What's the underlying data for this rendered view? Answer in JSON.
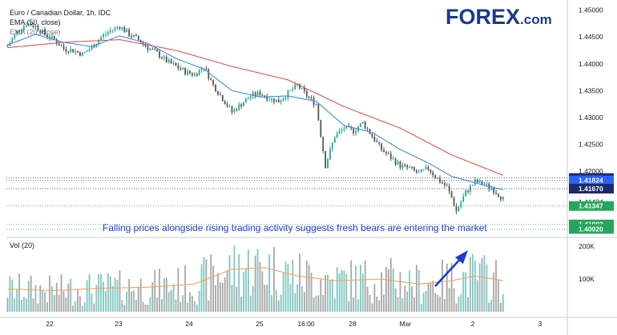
{
  "legend": {
    "line1": "Euro / Canadian Dollar, 1h, IDC",
    "line2": "EMA (50, close)",
    "line3": "EMA (20, close)"
  },
  "logo": {
    "brand": "FOREX",
    "suffix": ".com"
  },
  "annotation": "Falling prices alongside rising trading activity suggests fresh bears are entering the market",
  "volume_label": "Vol (20)",
  "colors": {
    "up": "#26a69a",
    "down": "#555555",
    "ema50": "#e0554f",
    "ema20": "#3f8ee6",
    "vol_up": "#7ec8c0",
    "vol_down": "#a7a7a7",
    "vol_ma": "#f4a460",
    "arrow": "#1a3ccf",
    "price_tag_dark": "#1c2a6b",
    "price_tag_blue": "#2962ff",
    "price_tag_green": "#26a65b"
  },
  "chart_data": {
    "type": "candlestick",
    "title": "Euro / Canadian Dollar, 1h, IDC",
    "x_ticks": [
      "22",
      "23",
      "24",
      "25",
      "16:00",
      "28",
      "Mar",
      "2",
      "3"
    ],
    "y_ticks": [
      "1.45000",
      "1.44500",
      "1.44000",
      "1.43500",
      "1.43000",
      "1.42500",
      "1.42000",
      "1.41424"
    ],
    "ylim": [
      1.4082,
      1.451
    ],
    "price_markers": [
      {
        "value": 1.41869,
        "label": "1.41869",
        "style": "dark"
      },
      {
        "value": 1.41824,
        "label": "1.41824",
        "style": "blue"
      },
      {
        "value": 1.4167,
        "label": "1.41670",
        "style": "dark"
      },
      {
        "value": 1.41347,
        "label": "1.41347",
        "style": "green"
      },
      {
        "value": 1.41003,
        "label": "1.41003",
        "style": "green"
      },
      {
        "value": 1.4092,
        "label": "1.40920",
        "style": "green"
      }
    ],
    "close_path": [
      [
        0,
        1.4433
      ],
      [
        4,
        1.446
      ],
      [
        8,
        1.4475
      ],
      [
        12,
        1.447
      ],
      [
        16,
        1.4455
      ],
      [
        20,
        1.4445
      ],
      [
        24,
        1.4428
      ],
      [
        28,
        1.4425
      ],
      [
        32,
        1.4418
      ],
      [
        36,
        1.443
      ],
      [
        40,
        1.445
      ],
      [
        44,
        1.4462
      ],
      [
        48,
        1.447
      ],
      [
        52,
        1.4455
      ],
      [
        56,
        1.4445
      ],
      [
        60,
        1.443
      ],
      [
        64,
        1.442
      ],
      [
        68,
        1.4405
      ],
      [
        72,
        1.4395
      ],
      [
        76,
        1.4385
      ],
      [
        80,
        1.438
      ],
      [
        84,
        1.4395
      ],
      [
        88,
        1.436
      ],
      [
        92,
        1.4335
      ],
      [
        96,
        1.431
      ],
      [
        100,
        1.4325
      ],
      [
        104,
        1.434
      ],
      [
        108,
        1.4345
      ],
      [
        112,
        1.4335
      ],
      [
        116,
        1.433
      ],
      [
        120,
        1.4345
      ],
      [
        124,
        1.436
      ],
      [
        128,
        1.434
      ],
      [
        132,
        1.4325
      ],
      [
        136,
        1.421
      ],
      [
        140,
        1.4265
      ],
      [
        144,
        1.428
      ],
      [
        148,
        1.4275
      ],
      [
        152,
        1.429
      ],
      [
        156,
        1.4265
      ],
      [
        160,
        1.424
      ],
      [
        164,
        1.4225
      ],
      [
        168,
        1.421
      ],
      [
        172,
        1.4205
      ],
      [
        176,
        1.4195
      ],
      [
        180,
        1.4205
      ],
      [
        184,
        1.4185
      ],
      [
        188,
        1.417
      ],
      [
        190,
        1.415
      ],
      [
        192,
        1.4125
      ],
      [
        196,
        1.416
      ],
      [
        200,
        1.418
      ],
      [
        204,
        1.4175
      ],
      [
        208,
        1.4165
      ],
      [
        212,
        1.4148
      ]
    ],
    "ema20": [
      [
        0,
        1.4435
      ],
      [
        12,
        1.4455
      ],
      [
        24,
        1.444
      ],
      [
        36,
        1.4432
      ],
      [
        48,
        1.4452
      ],
      [
        60,
        1.4438
      ],
      [
        72,
        1.441
      ],
      [
        84,
        1.439
      ],
      [
        96,
        1.435
      ],
      [
        108,
        1.4338
      ],
      [
        120,
        1.434
      ],
      [
        132,
        1.433
      ],
      [
        144,
        1.4285
      ],
      [
        156,
        1.4272
      ],
      [
        168,
        1.424
      ],
      [
        180,
        1.4215
      ],
      [
        190,
        1.419
      ],
      [
        200,
        1.4178
      ],
      [
        212,
        1.4165
      ]
    ],
    "ema50": [
      [
        0,
        1.443
      ],
      [
        24,
        1.444
      ],
      [
        48,
        1.4445
      ],
      [
        72,
        1.4425
      ],
      [
        96,
        1.4395
      ],
      [
        120,
        1.437
      ],
      [
        144,
        1.432
      ],
      [
        168,
        1.428
      ],
      [
        190,
        1.423
      ],
      [
        212,
        1.4192
      ]
    ],
    "volume_ticks": [
      "200K",
      "100K"
    ],
    "volume_ylim": [
      0,
      220000
    ],
    "volume_ma": [
      [
        0,
        70000
      ],
      [
        20,
        65000
      ],
      [
        40,
        72000
      ],
      [
        60,
        75000
      ],
      [
        80,
        85000
      ],
      [
        96,
        130000
      ],
      [
        110,
        135000
      ],
      [
        124,
        110000
      ],
      [
        140,
        95000
      ],
      [
        160,
        100000
      ],
      [
        176,
        85000
      ],
      [
        190,
        95000
      ],
      [
        200,
        110000
      ],
      [
        212,
        95000
      ]
    ]
  }
}
